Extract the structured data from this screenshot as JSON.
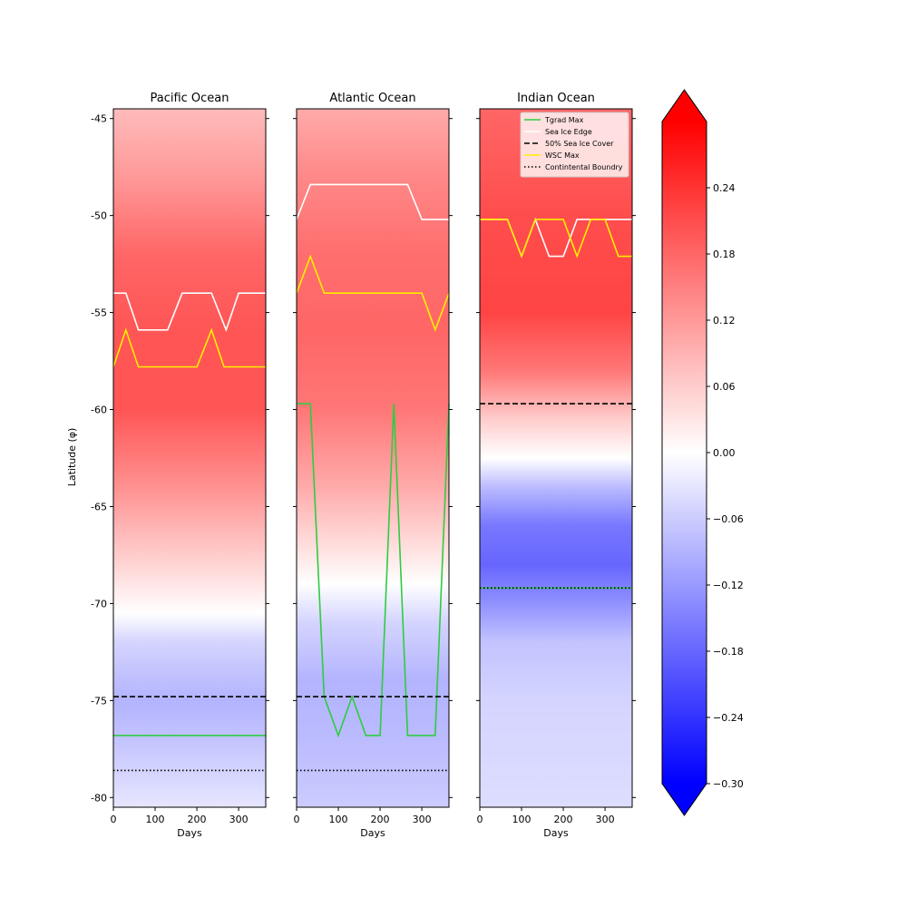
{
  "figure": {
    "ylabel": "Latitude (φ)",
    "xlabel": "Days"
  },
  "colors": {
    "tgrad": "#2ecc40",
    "sea_ice_edge": "#ffffff",
    "half_ice": "#000000",
    "wsc": "#ffee00",
    "continental": "#000000"
  },
  "legend": {
    "location": "upper right of Indian Ocean panel",
    "entries": [
      {
        "label": "Tgrad Max",
        "key": "tgrad",
        "style": "solid"
      },
      {
        "label": "Sea Ice Edge",
        "key": "sea_ice_edge",
        "style": "solid"
      },
      {
        "label": "50% Sea Ice Cover",
        "key": "half_ice",
        "style": "dashed"
      },
      {
        "label": "WSC Max",
        "key": "wsc",
        "style": "solid"
      },
      {
        "label": "Contintental Boundry",
        "key": "continental",
        "style": "dotted"
      }
    ]
  },
  "chart_data": [
    {
      "type": "heatmap",
      "title": "Pacific Ocean",
      "xlabel": "Days",
      "ylabel": "Latitude (φ)",
      "xlim": [
        0,
        365
      ],
      "ylim": [
        -80.5,
        -44.5
      ],
      "xticks": [
        "0",
        "100",
        "200",
        "300"
      ],
      "yticks": [
        "-45",
        "-50",
        "-55",
        "-60",
        "-65",
        "-70",
        "-75",
        "-80"
      ],
      "field_profile": [
        [
          -44.5,
          0.08
        ],
        [
          -48,
          0.12
        ],
        [
          -52,
          0.18
        ],
        [
          -56,
          0.2
        ],
        [
          -60,
          0.2
        ],
        [
          -64,
          0.13
        ],
        [
          -68,
          0.05
        ],
        [
          -70.5,
          0.0
        ],
        [
          -72,
          -0.05
        ],
        [
          -75,
          -0.09
        ],
        [
          -77,
          -0.07
        ],
        [
          -80.5,
          -0.03
        ]
      ],
      "series": [
        {
          "name": "Tgrad Max",
          "key": "tgrad",
          "x": [
            0,
            365
          ],
          "y": [
            -76.8,
            -76.8
          ]
        },
        {
          "name": "Sea Ice Edge",
          "key": "sea_ice_edge",
          "x": [
            0,
            30,
            60,
            130,
            165,
            235,
            270,
            300,
            365
          ],
          "y": [
            -54.0,
            -54.0,
            -55.9,
            -55.9,
            -54.0,
            -54.0,
            -55.9,
            -54.0,
            -54.0
          ]
        },
        {
          "name": "50% Sea Ice Cover",
          "key": "half_ice",
          "x": [
            0,
            365
          ],
          "y": [
            -74.8,
            -74.8
          ]
        },
        {
          "name": "WSC Max",
          "key": "wsc",
          "x": [
            0,
            30,
            60,
            200,
            235,
            265,
            365
          ],
          "y": [
            -57.8,
            -55.9,
            -57.8,
            -57.8,
            -55.9,
            -57.8,
            -57.8
          ]
        },
        {
          "name": "Contintental Boundry",
          "key": "continental",
          "x": [
            0,
            365
          ],
          "y": [
            -78.6,
            -78.6
          ]
        }
      ]
    },
    {
      "type": "heatmap",
      "title": "Atlantic Ocean",
      "xlabel": "Days",
      "xlim": [
        0,
        365
      ],
      "ylim": [
        -80.5,
        -44.5
      ],
      "xticks": [
        "0",
        "100",
        "200",
        "300"
      ],
      "field_profile": [
        [
          -44.5,
          0.1
        ],
        [
          -48,
          0.14
        ],
        [
          -52,
          0.17
        ],
        [
          -56,
          0.18
        ],
        [
          -60,
          0.16
        ],
        [
          -64,
          0.1
        ],
        [
          -67,
          0.04
        ],
        [
          -69,
          0.0
        ],
        [
          -71,
          -0.05
        ],
        [
          -74,
          -0.09
        ],
        [
          -77,
          -0.08
        ],
        [
          -80.5,
          -0.06
        ]
      ],
      "series": [
        {
          "name": "Tgrad Max",
          "key": "tgrad",
          "x": [
            0,
            33,
            66,
            100,
            133,
            166,
            200,
            233,
            266,
            300,
            332,
            365
          ],
          "y": [
            -59.7,
            -59.7,
            -74.8,
            -76.8,
            -74.8,
            -76.8,
            -76.8,
            -59.7,
            -76.8,
            -76.8,
            -76.8,
            -59.7
          ]
        },
        {
          "name": "Sea Ice Edge",
          "key": "sea_ice_edge",
          "x": [
            0,
            33,
            266,
            300,
            365
          ],
          "y": [
            -50.2,
            -48.4,
            -48.4,
            -50.2,
            -50.2
          ]
        },
        {
          "name": "50% Sea Ice Cover",
          "key": "half_ice",
          "x": [
            0,
            365
          ],
          "y": [
            -74.8,
            -74.8
          ]
        },
        {
          "name": "WSC Max",
          "key": "wsc",
          "x": [
            0,
            33,
            66,
            300,
            332,
            365
          ],
          "y": [
            -54.0,
            -52.1,
            -54.0,
            -54.0,
            -55.9,
            -54.0
          ]
        },
        {
          "name": "Contintental Boundry",
          "key": "continental",
          "x": [
            0,
            365
          ],
          "y": [
            -78.6,
            -78.6
          ]
        }
      ]
    },
    {
      "type": "heatmap",
      "title": "Indian Ocean",
      "xlabel": "Days",
      "xlim": [
        0,
        365
      ],
      "ylim": [
        -80.5,
        -44.5
      ],
      "xticks": [
        "0",
        "100",
        "200",
        "300"
      ],
      "field_profile": [
        [
          -44.5,
          0.18
        ],
        [
          -50,
          0.21
        ],
        [
          -55,
          0.22
        ],
        [
          -58,
          0.16
        ],
        [
          -60.5,
          0.06
        ],
        [
          -62.5,
          0.0
        ],
        [
          -64,
          -0.08
        ],
        [
          -66,
          -0.16
        ],
        [
          -68,
          -0.18
        ],
        [
          -70,
          -0.13
        ],
        [
          -72,
          -0.07
        ],
        [
          -75,
          -0.05
        ],
        [
          -80.5,
          -0.04
        ]
      ],
      "series": [
        {
          "name": "Tgrad Max",
          "key": "tgrad",
          "x": [
            0,
            365
          ],
          "y": [
            -69.2,
            -69.2
          ]
        },
        {
          "name": "Sea Ice Edge",
          "key": "sea_ice_edge",
          "x": [
            0,
            66,
            100,
            133,
            166,
            200,
            233,
            365
          ],
          "y": [
            -50.2,
            -50.2,
            -52.1,
            -50.2,
            -52.1,
            -52.1,
            -50.2,
            -50.2
          ]
        },
        {
          "name": "50% Sea Ice Cover",
          "key": "half_ice",
          "x": [
            0,
            365
          ],
          "y": [
            -59.7,
            -59.7
          ]
        },
        {
          "name": "WSC Max",
          "key": "wsc",
          "x": [
            0,
            66,
            100,
            133,
            200,
            233,
            266,
            300,
            332,
            365
          ],
          "y": [
            -50.2,
            -50.2,
            -52.1,
            -50.2,
            -50.2,
            -52.1,
            -50.2,
            -50.2,
            -52.1,
            -52.1
          ]
        },
        {
          "name": "Contintental Boundry",
          "key": "continental",
          "x": [
            0,
            365
          ],
          "y": [
            -69.2,
            -69.2
          ]
        }
      ]
    }
  ],
  "colorbar": {
    "range": [
      -0.3,
      0.3
    ],
    "ticks": [
      "0.24",
      "0.18",
      "0.12",
      "0.06",
      "0.00",
      "−0.06",
      "−0.12",
      "−0.18",
      "−0.24",
      "−0.30"
    ],
    "tick_values": [
      0.24,
      0.18,
      0.12,
      0.06,
      0.0,
      -0.06,
      -0.12,
      -0.18,
      -0.24,
      -0.3
    ],
    "colormap": "bwr",
    "extend": "both"
  }
}
